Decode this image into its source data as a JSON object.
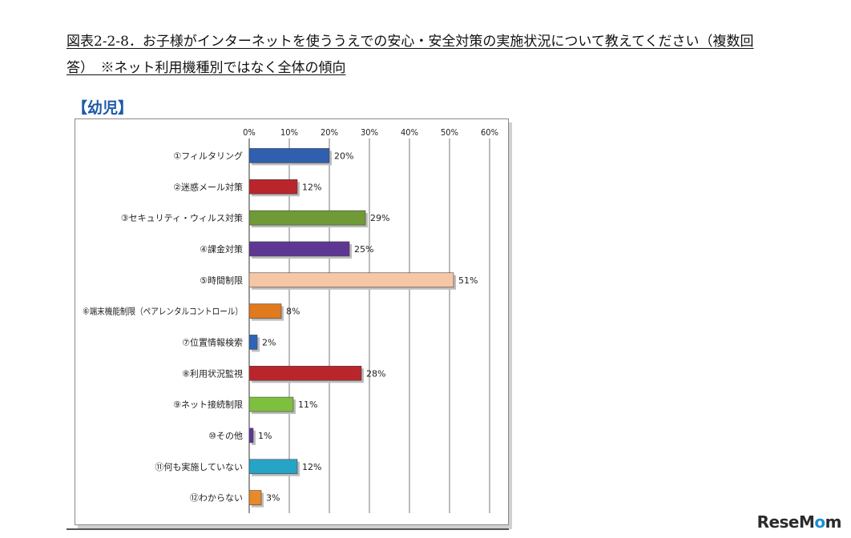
{
  "caption": {
    "line1": "図表2-2-8．お子様がインターネットを使ううえでの安心・安全対策の実施状況について教えてください（複数回",
    "line2": "答）　※ネット利用機種別ではなく全体の傾向"
  },
  "section_title": "【幼児】",
  "watermark": {
    "part1": "ReseM",
    "part2": "o",
    "part3": "m"
  },
  "chart_data": {
    "type": "bar",
    "orientation": "horizontal",
    "xlim": [
      0,
      60
    ],
    "x_ticks": [
      "0%",
      "10%",
      "20%",
      "30%",
      "40%",
      "50%",
      "60%"
    ],
    "grid": true,
    "categories": [
      "①フィルタリング",
      "②迷惑メール対策",
      "③セキュリティ・ウィルス対策",
      "④課金対策",
      "⑤時間制限",
      "⑥端末機能制限（ペアレンタルコントロール）",
      "⑦位置情報検索",
      "⑧利用状況監視",
      "⑨ネット接続制限",
      "⑩その他",
      "⑪何も実施していない",
      "⑫わからない"
    ],
    "values": [
      20,
      12,
      29,
      25,
      51,
      8,
      2,
      28,
      11,
      1,
      12,
      3
    ],
    "value_labels": [
      "20%",
      "12%",
      "29%",
      "25%",
      "51%",
      "8%",
      "2%",
      "28%",
      "11%",
      "1%",
      "12%",
      "3%"
    ],
    "colors": [
      "#2f5fae",
      "#b8262b",
      "#6f9a36",
      "#5e3792",
      "#f6c7a6",
      "#e07a1f",
      "#2f63b8",
      "#b8262b",
      "#7fbf40",
      "#5e3792",
      "#27a3c6",
      "#e88a2a"
    ]
  }
}
